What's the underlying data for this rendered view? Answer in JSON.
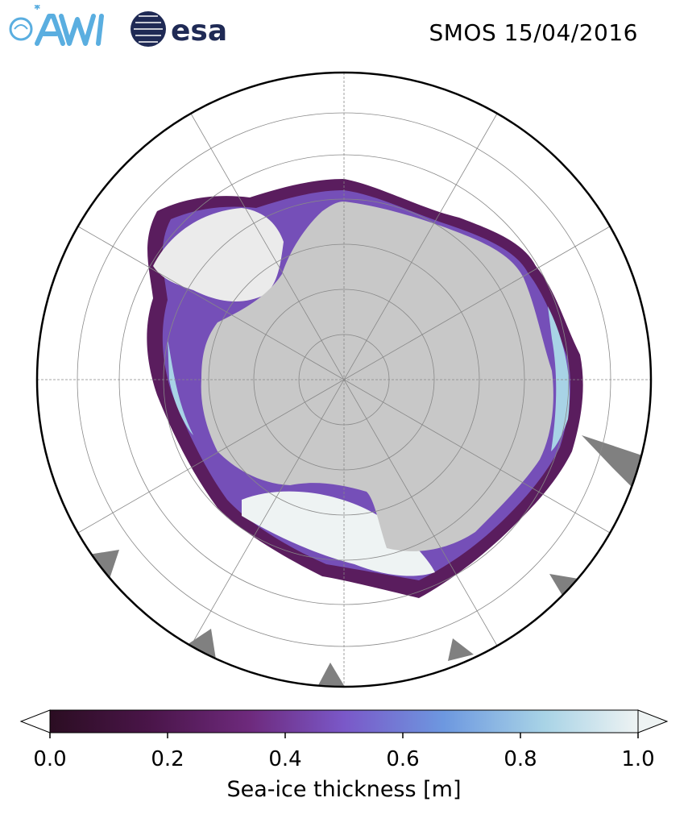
{
  "header": {
    "title": "SMOS 15/04/2016",
    "logos": [
      {
        "name": "AWI",
        "icon": "awi-logo",
        "color": "#5aaee0"
      },
      {
        "name": "esa",
        "icon": "esa-logo",
        "color": "#1f2a55"
      }
    ]
  },
  "map": {
    "projection": "south-polar-stereographic",
    "graticule": true,
    "colors": {
      "land": "#c8c8c8",
      "ice_shelf": "#ebebeb",
      "missing": "#808080",
      "ocean": "#ffffff"
    }
  },
  "colorbar": {
    "label": "Sea-ice thickness [m]",
    "min": 0.0,
    "max": 1.0,
    "extend": "both",
    "ticks": [
      "0.0",
      "0.2",
      "0.4",
      "0.6",
      "0.8",
      "1.0"
    ],
    "colormap": [
      "#2b0d22",
      "#4a1549",
      "#6e2a7d",
      "#7a58c8",
      "#6d98e0",
      "#a8d3e6",
      "#eef3f3"
    ]
  }
}
